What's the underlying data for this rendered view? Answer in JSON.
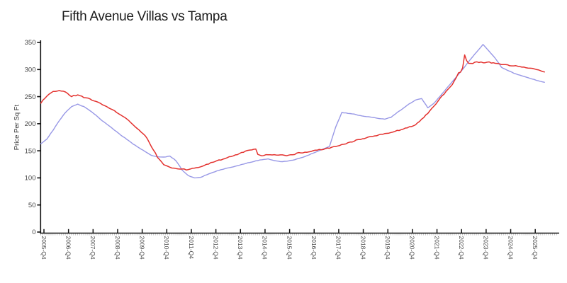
{
  "title": "Fifth Avenue Villas vs Tampa",
  "y_axis": {
    "label": "Price Per Sq Ft",
    "ticks": [
      0,
      50,
      100,
      150,
      200,
      250,
      300,
      350
    ],
    "min": 0,
    "max": 350
  },
  "x_axis": {
    "tick_years": [
      2005,
      2006,
      2007,
      2008,
      2009,
      2010,
      2011,
      2012,
      2013,
      2014,
      2015,
      2016,
      2017,
      2018,
      2019,
      2020,
      2021,
      2022,
      2023,
      2024,
      2025
    ],
    "tick_suffix": "-Q4"
  },
  "colors": {
    "series_red": "#e3312e",
    "series_blue": "#9898e6",
    "axis": "#111111",
    "minor_tick": "#c0c0c0",
    "tick_label": "#454545"
  },
  "chart_data": {
    "type": "line",
    "title": "Fifth Avenue Villas vs Tampa",
    "xlabel": "",
    "ylabel": "Price Per Sq Ft",
    "ylim": [
      0,
      350
    ],
    "grid": false,
    "legend": "none",
    "x_start": 2005.625,
    "x_step": 0.25,
    "x_tick_labels": [
      "2005-Q4",
      "2006-Q4",
      "2007-Q4",
      "2008-Q4",
      "2009-Q4",
      "2010-Q4",
      "2011-Q4",
      "2012-Q4",
      "2013-Q4",
      "2014-Q4",
      "2015-Q4",
      "2016-Q4",
      "2017-Q4",
      "2018-Q4",
      "2019-Q4",
      "2020-Q4",
      "2021-Q4",
      "2022-Q4",
      "2023-Q4",
      "2024-Q4",
      "2025-Q4"
    ],
    "series": [
      {
        "name": "Tampa",
        "color": "#9898e6",
        "values": [
          163,
          172,
          188,
          205,
          220,
          231,
          236,
          232,
          225,
          216,
          206,
          197,
          188,
          179,
          171,
          163,
          156,
          149,
          142,
          138.5,
          137.5,
          139.5,
          131,
          114,
          104,
          100.5,
          101,
          106,
          110,
          113.5,
          116.5,
          119.5,
          123,
          126.5,
          129.5,
          132,
          134,
          135,
          131.5,
          129.5,
          130.5,
          133,
          136,
          139.5,
          144,
          148,
          152.5,
          157,
          193,
          220.5,
          219.5,
          218,
          215.5,
          213.5,
          211.5,
          209.5,
          208.5,
          212,
          221,
          229.5,
          237.5,
          244,
          246.5,
          229,
          237,
          250.5,
          264,
          277.5,
          291.5,
          305,
          319,
          332.5,
          345.5,
          333,
          320.5,
          304.5,
          299,
          294,
          290,
          286,
          282.5,
          279,
          276.5
        ]
      },
      {
        "name": "Fifth Avenue Villas",
        "color": "#e3312e",
        "values": [
          238,
          251,
          258,
          261,
          258,
          251,
          253,
          249,
          245,
          241,
          235,
          230,
          224,
          217,
          209,
          199,
          189,
          178,
          158,
          138,
          124.5,
          119.5,
          117,
          116,
          115.5,
          117,
          119,
          124,
          128.5,
          132.5,
          136,
          140,
          144,
          148,
          151.5,
          153,
          141,
          143.5,
          143,
          142.5,
          142.5,
          143.5,
          146,
          146.5,
          149,
          151,
          153,
          155.5,
          158.5,
          161,
          164,
          167.5,
          170.5,
          173,
          176,
          179.5,
          182.5,
          185,
          187.5,
          190.5,
          193.5,
          197.5,
          208,
          220,
          233,
          247.5,
          260,
          273,
          293,
          327,
          310,
          313.5,
          313,
          313.5,
          311.5,
          309.5,
          308,
          306,
          305,
          303.5,
          302.5,
          299.5,
          295.5
        ]
      }
    ]
  }
}
